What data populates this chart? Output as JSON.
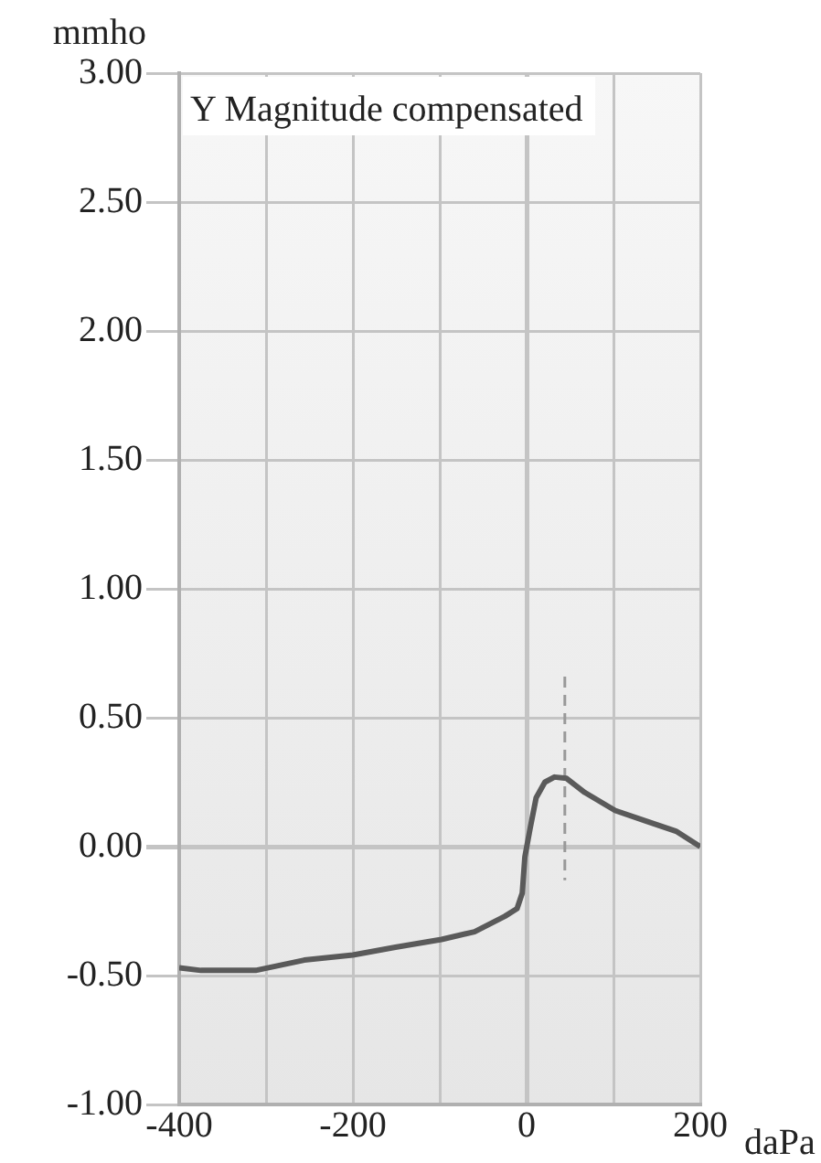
{
  "chart_data": {
    "type": "line",
    "title": "Y Magnitude compensated",
    "xlabel": "daPa",
    "ylabel": "mmho",
    "series": [
      {
        "color": "#5a5a5a",
        "x": [
          -400,
          -375,
          -312,
          -256,
          -200,
          -151,
          -98,
          -60,
          -25,
          -11,
          -5,
          -2,
          4,
          11,
          21,
          32,
          46,
          67,
          102,
          137,
          172,
          200
        ],
        "values": [
          -0.47,
          -0.48,
          -0.48,
          -0.44,
          -0.42,
          -0.39,
          -0.36,
          -0.33,
          -0.27,
          -0.24,
          -0.18,
          -0.04,
          0.07,
          0.19,
          0.25,
          0.27,
          0.265,
          0.21,
          0.14,
          0.1,
          0.06,
          0.0
        ],
        "line_style": "solid"
      },
      {
        "color": "#999999",
        "x": [
          44,
          44
        ],
        "values": [
          0.66,
          -0.13
        ],
        "line_style": "dashed"
      }
    ],
    "xlim": [
      -400,
      200
    ],
    "xticks": [
      -400,
      {
        "value": -300,
        "label": null
      },
      -200,
      {
        "value": -100,
        "label": null
      },
      0,
      {
        "value": 100,
        "label": null
      },
      200
    ],
    "ylim": [
      -1,
      3
    ],
    "yticks": [
      {
        "value": -1,
        "label": "-1.00"
      },
      {
        "value": -0.5,
        "label": "-0.50"
      },
      {
        "value": 0,
        "label": "0.00"
      },
      {
        "value": 0.5,
        "label": "0.50"
      },
      {
        "value": 1,
        "label": "1.00"
      },
      {
        "value": 1.5,
        "label": "1.50"
      },
      {
        "value": 2,
        "label": "2.00"
      },
      {
        "value": 2.5,
        "label": "2.50"
      },
      {
        "value": 3,
        "label": "3.00"
      }
    ],
    "grid": true,
    "legend": false,
    "marker": "none"
  }
}
